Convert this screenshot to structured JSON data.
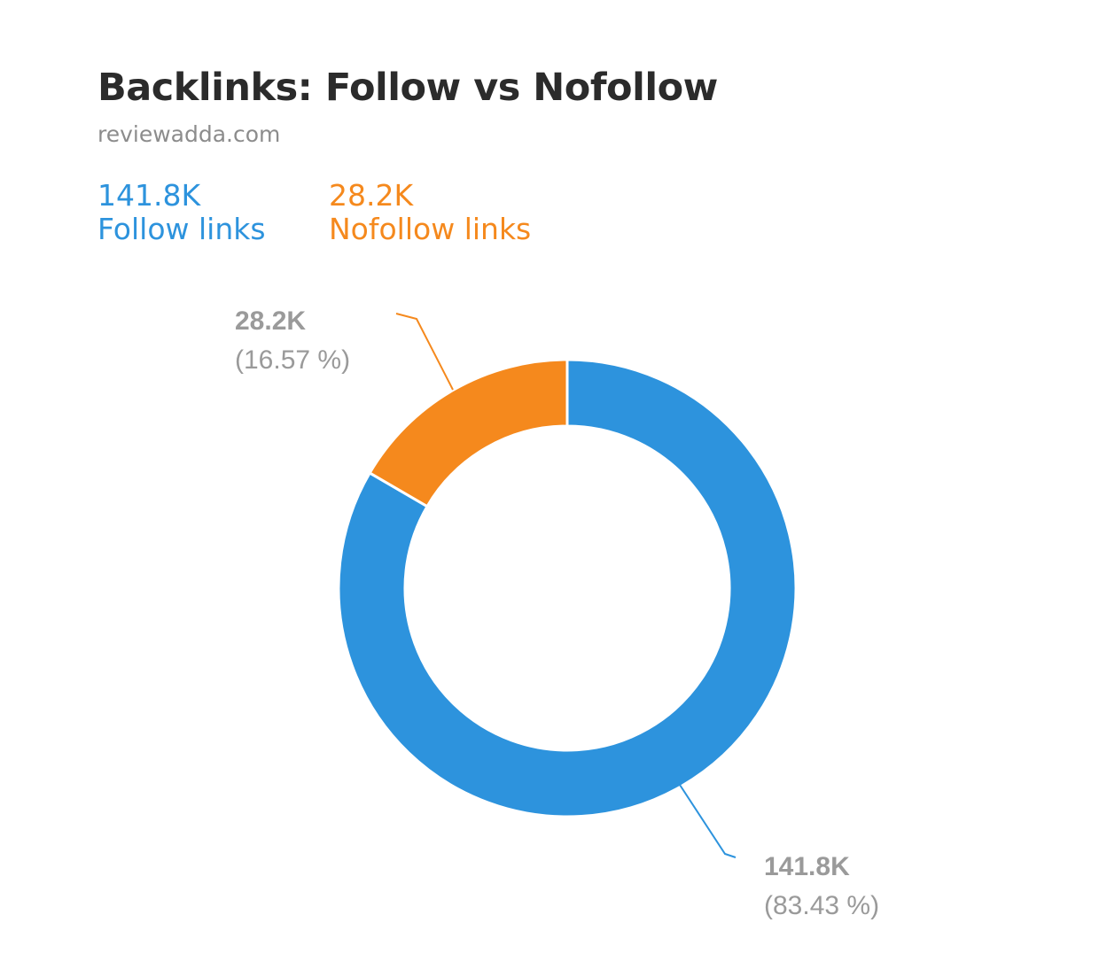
{
  "header": {
    "title": "Backlinks: Follow vs Nofollow",
    "subtitle": "reviewadda.com"
  },
  "legend": [
    {
      "value": "141.8K",
      "label": "Follow links",
      "color": "#2d93dd"
    },
    {
      "value": "28.2K",
      "label": "Nofollow links",
      "color": "#f5891d"
    }
  ],
  "chart_data": {
    "type": "pie",
    "title": "Backlinks: Follow vs Nofollow",
    "subtitle": "reviewadda.com",
    "donut": true,
    "slices": [
      {
        "name": "Follow links",
        "value": 141.8,
        "value_label": "141.8K",
        "percent": 83.43,
        "percent_label": "(83.43 %)",
        "color": "#2d93dd"
      },
      {
        "name": "Nofollow links",
        "value": 28.2,
        "value_label": "28.2K",
        "percent": 16.57,
        "percent_label": "(16.57 %)",
        "color": "#f5891d"
      }
    ],
    "start_angle_deg": 0,
    "direction": "clockwise"
  }
}
